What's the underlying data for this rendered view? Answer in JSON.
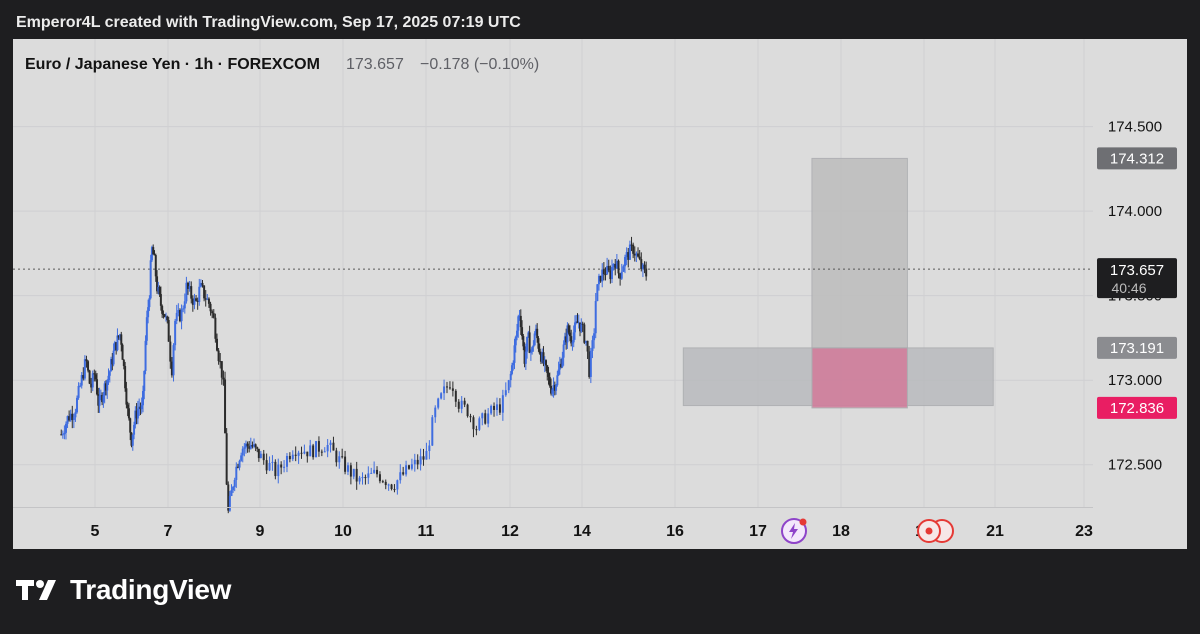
{
  "header": {
    "text": "Emperor4L created with TradingView.com, Sep 17, 2025 07:19 UTC"
  },
  "symbol_bar": {
    "title": "Euro / Japanese Yen · 1h · FOREXCOM",
    "price": "173.657",
    "change": "−0.178 (−0.10%)"
  },
  "footer": {
    "brand": "TradingView",
    "logo_icon": "tradingview-logo-icon"
  },
  "chart_data": {
    "type": "candlestick",
    "x_ticks": [
      "5",
      "7",
      "9",
      "10",
      "11",
      "12",
      "14",
      "16",
      "17",
      "18",
      "19",
      "21",
      "23"
    ],
    "y_ticks": [
      "172.500",
      "173.000",
      "173.500",
      "174.000",
      "174.500"
    ],
    "y_tick_values": [
      172.5,
      173.0,
      173.5,
      174.0,
      174.5
    ],
    "ylim": [
      172.25,
      174.9
    ],
    "last_price": 173.657,
    "last_price_label": "173.657",
    "countdown_label": "40:46",
    "level_labels": [
      {
        "value": 174.312,
        "label": "174.312",
        "color": "#6e6f73"
      },
      {
        "value": 173.191,
        "label": "173.191",
        "color": "#8b8c90"
      },
      {
        "value": 172.836,
        "label": "172.836",
        "color": "#e91e63"
      }
    ],
    "zones": [
      {
        "name": "tp-zone",
        "x_from": "17.65",
        "x_to": "18.8",
        "y_from": 173.191,
        "y_to": 174.312,
        "color": "#bdbdbd"
      },
      {
        "name": "entry-zone",
        "x_from": "16.1",
        "x_to": "20.95",
        "y_from": 172.85,
        "y_to": 173.191,
        "color": "#b9babe"
      },
      {
        "name": "sl-zone",
        "x_from": "17.65",
        "x_to": "18.8",
        "y_from": 172.836,
        "y_to": 173.191,
        "color": "#d27a9a"
      }
    ],
    "candle_colors": {
      "up": "#3f6de0",
      "down": "#2b2b2b"
    },
    "event_icons": [
      "flash-event-icon",
      "central-bank-event-icon"
    ],
    "close_path": [
      [
        4.25,
        172.68
      ],
      [
        4.4,
        172.78
      ],
      [
        4.55,
        172.82
      ],
      [
        4.7,
        173.0
      ],
      [
        4.8,
        173.12
      ],
      [
        4.9,
        172.95
      ],
      [
        5.0,
        173.05
      ],
      [
        5.1,
        172.85
      ],
      [
        5.25,
        172.95
      ],
      [
        5.4,
        173.05
      ],
      [
        5.55,
        173.2
      ],
      [
        5.7,
        173.28
      ],
      [
        5.8,
        173.05
      ],
      [
        5.9,
        172.8
      ],
      [
        6.0,
        172.65
      ],
      [
        6.1,
        172.78
      ],
      [
        6.2,
        172.85
      ],
      [
        6.3,
        172.82
      ],
      [
        6.4,
        173.3
      ],
      [
        6.5,
        173.55
      ],
      [
        6.55,
        173.78
      ],
      [
        6.62,
        173.72
      ],
      [
        6.7,
        173.55
      ],
      [
        6.8,
        173.45
      ],
      [
        6.9,
        173.4
      ],
      [
        7.0,
        173.3
      ],
      [
        7.08,
        173.05
      ],
      [
        7.15,
        173.35
      ],
      [
        7.3,
        173.4
      ],
      [
        7.4,
        173.55
      ],
      [
        7.5,
        173.5
      ],
      [
        7.6,
        173.45
      ],
      [
        7.7,
        173.55
      ],
      [
        7.8,
        173.5
      ],
      [
        7.9,
        173.45
      ],
      [
        8.0,
        173.35
      ],
      [
        8.1,
        173.15
      ],
      [
        8.2,
        173.0
      ],
      [
        8.3,
        172.2
      ],
      [
        8.45,
        172.45
      ],
      [
        8.6,
        172.6
      ],
      [
        8.8,
        172.62
      ],
      [
        9.0,
        172.55
      ],
      [
        9.2,
        172.45
      ],
      [
        9.4,
        172.6
      ],
      [
        9.6,
        172.58
      ],
      [
        9.8,
        172.62
      ],
      [
        10.0,
        172.5
      ],
      [
        10.2,
        172.4
      ],
      [
        10.4,
        172.45
      ],
      [
        10.6,
        172.38
      ],
      [
        10.8,
        172.48
      ],
      [
        11.0,
        172.55
      ],
      [
        11.1,
        172.8
      ],
      [
        11.2,
        172.92
      ],
      [
        11.3,
        173.0
      ],
      [
        11.4,
        172.85
      ],
      [
        11.5,
        172.82
      ],
      [
        11.6,
        172.72
      ],
      [
        11.7,
        172.78
      ],
      [
        11.8,
        172.82
      ],
      [
        11.9,
        172.85
      ],
      [
        12.0,
        173.0
      ],
      [
        12.1,
        173.15
      ],
      [
        12.2,
        173.3
      ],
      [
        12.25,
        173.42
      ],
      [
        12.3,
        173.35
      ],
      [
        12.4,
        173.12
      ],
      [
        12.5,
        173.25
      ],
      [
        12.6,
        173.15
      ],
      [
        12.7,
        173.3
      ],
      [
        12.8,
        173.2
      ],
      [
        12.9,
        173.12
      ],
      [
        13.0,
        173.05
      ],
      [
        13.15,
        172.95
      ],
      [
        13.3,
        173.0
      ],
      [
        13.4,
        173.1
      ],
      [
        13.5,
        173.2
      ],
      [
        13.6,
        173.3
      ],
      [
        13.7,
        173.25
      ],
      [
        13.8,
        173.3
      ],
      [
        13.9,
        173.35
      ],
      [
        14.0,
        173.3
      ],
      [
        14.1,
        173.22
      ],
      [
        14.15,
        173.05
      ],
      [
        14.25,
        173.25
      ],
      [
        14.3,
        173.5
      ],
      [
        14.4,
        173.62
      ],
      [
        14.5,
        173.65
      ],
      [
        14.6,
        173.62
      ],
      [
        14.7,
        173.72
      ],
      [
        14.8,
        173.62
      ],
      [
        14.9,
        173.7
      ],
      [
        15.0,
        173.75
      ],
      [
        15.1,
        173.78
      ],
      [
        15.2,
        173.72
      ],
      [
        15.3,
        173.65
      ],
      [
        15.4,
        173.62
      ]
    ]
  }
}
